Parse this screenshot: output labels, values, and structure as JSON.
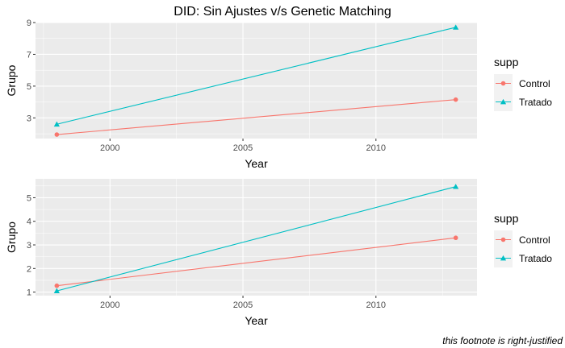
{
  "title": "DID: Sin Ajustes v/s Genetic Matching",
  "footnote": "this footnote is right-justified",
  "colors": {
    "panel_bg": "#ebebeb",
    "grid_major": "#ffffff",
    "tick_text": "#4d4d4d",
    "Control": "#f8766d",
    "Tratado": "#00bfc4"
  },
  "chart_data": [
    {
      "type": "line",
      "xlabel": "Year",
      "ylabel": "Grupo",
      "xlim": [
        1997.2,
        2013.8
      ],
      "ylim": [
        1.7,
        9.0
      ],
      "xticks": [
        2000,
        2005,
        2010
      ],
      "yticks": [
        3,
        5,
        7,
        9
      ],
      "grid": true,
      "legend": {
        "title": "supp",
        "position": "right"
      },
      "series": [
        {
          "name": "Control",
          "marker": "circle",
          "x": [
            1998,
            2013
          ],
          "y": [
            1.95,
            4.15
          ]
        },
        {
          "name": "Tratado",
          "marker": "triangle",
          "x": [
            1998,
            2013
          ],
          "y": [
            2.6,
            8.7
          ]
        }
      ]
    },
    {
      "type": "line",
      "xlabel": "Year",
      "ylabel": "Grupo",
      "xlim": [
        1997.2,
        2013.8
      ],
      "ylim": [
        0.85,
        5.8
      ],
      "xticks": [
        2000,
        2005,
        2010
      ],
      "yticks": [
        1,
        2,
        3,
        4,
        5
      ],
      "grid": true,
      "legend": {
        "title": "supp",
        "position": "right"
      },
      "series": [
        {
          "name": "Control",
          "marker": "circle",
          "x": [
            1998,
            2013
          ],
          "y": [
            1.27,
            3.3
          ]
        },
        {
          "name": "Tratado",
          "marker": "triangle",
          "x": [
            1998,
            2013
          ],
          "y": [
            1.05,
            5.47
          ]
        }
      ]
    }
  ]
}
